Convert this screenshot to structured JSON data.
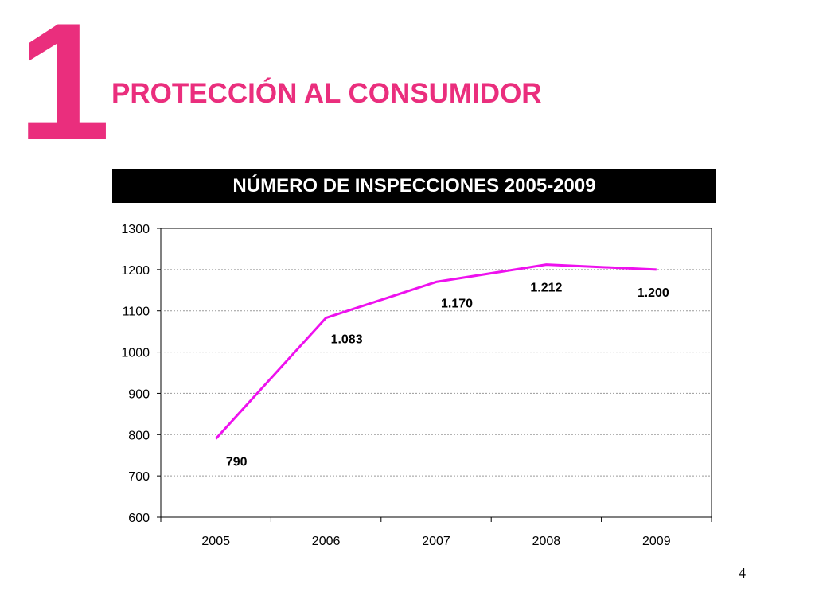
{
  "slide": {
    "section_number": "1",
    "section_title": "PROTECCIÓN AL CONSUMIDOR",
    "page_number": "4",
    "accent_color": "#ea2e7d"
  },
  "chart_data": {
    "type": "line",
    "title": "NÚMERO DE INSPECCIONES 2005-2009",
    "categories": [
      "2005",
      "2006",
      "2007",
      "2008",
      "2009"
    ],
    "series": [
      {
        "values": [
          790,
          1083,
          1170,
          1212,
          1200
        ],
        "data_labels": [
          "790",
          "1.083",
          "1.170",
          "1.212",
          "1.200"
        ],
        "color": "#ee11ee"
      }
    ],
    "xlabel": "",
    "ylabel": "",
    "ylim": [
      600,
      1300
    ],
    "yticks": [
      600,
      700,
      800,
      900,
      1000,
      1100,
      1200,
      1300
    ],
    "grid": true,
    "legend": "none"
  }
}
